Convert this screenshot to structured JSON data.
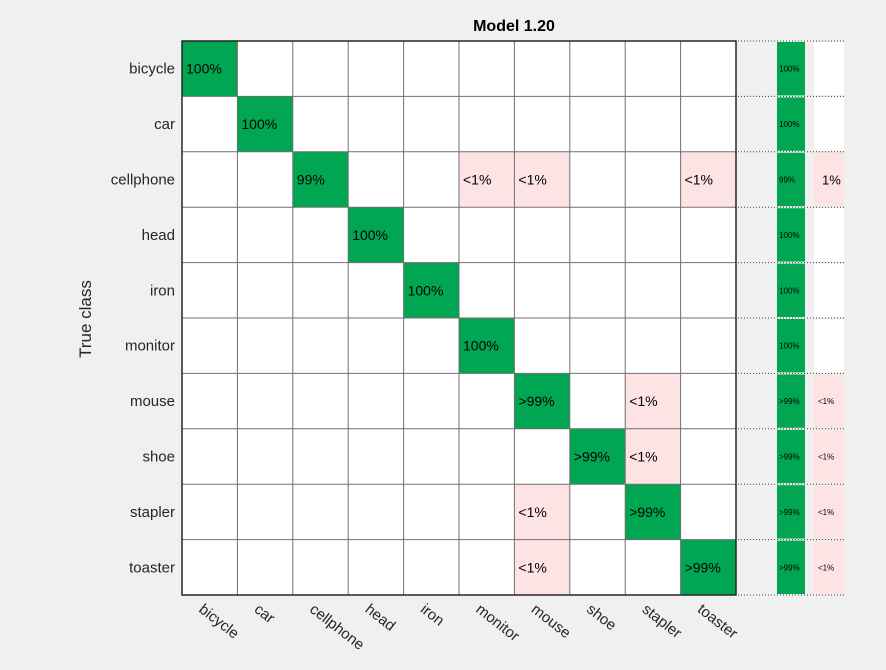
{
  "chart_data": {
    "type": "heatmap",
    "title": "Model 1.20",
    "ylabel": "True class",
    "xlabel": "",
    "classes": [
      "bicycle",
      "car",
      "cellphone",
      "head",
      "iron",
      "monitor",
      "mouse",
      "shoe",
      "stapler",
      "toaster"
    ],
    "cells": [
      [
        "100%",
        "",
        "",
        "",
        "",
        "",
        "",
        "",
        "",
        ""
      ],
      [
        "",
        "100%",
        "",
        "",
        "",
        "",
        "",
        "",
        "",
        ""
      ],
      [
        "",
        "",
        "99%",
        "",
        "",
        "<1%",
        "<1%",
        "",
        "",
        "<1%"
      ],
      [
        "",
        "",
        "",
        "100%",
        "",
        "",
        "",
        "",
        "",
        ""
      ],
      [
        "",
        "",
        "",
        "",
        "100%",
        "",
        "",
        "",
        "",
        ""
      ],
      [
        "",
        "",
        "",
        "",
        "",
        "100%",
        "",
        "",
        "",
        ""
      ],
      [
        "",
        "",
        "",
        "",
        "",
        "",
        ">99%",
        "",
        "<1%",
        ""
      ],
      [
        "",
        "",
        "",
        "",
        "",
        "",
        "",
        ">99%",
        "<1%",
        ""
      ],
      [
        "",
        "",
        "",
        "",
        "",
        "",
        "<1%",
        "",
        ">99%",
        ""
      ],
      [
        "",
        "",
        "",
        "",
        "",
        "",
        "<1%",
        "",
        "",
        ">99%"
      ]
    ],
    "summary_tpr": [
      "100%",
      "100%",
      "99%",
      "100%",
      "100%",
      "100%",
      ">99%",
      ">99%",
      ">99%",
      ">99%"
    ],
    "summary_fnr": [
      "",
      "",
      "1%",
      "",
      "",
      "",
      "<1%",
      "<1%",
      "<1%",
      "<1%"
    ],
    "colors": {
      "correct": "#00a651",
      "error": "#fde3e3",
      "empty": "#ffffff",
      "grid": "#707070",
      "figure_bg": "#f0f0f0"
    }
  }
}
